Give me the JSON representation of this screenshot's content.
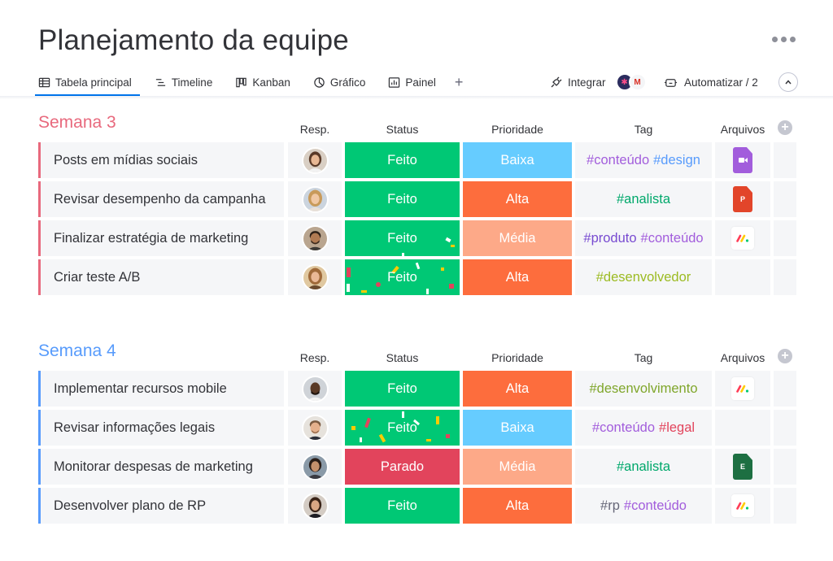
{
  "board": {
    "title": "Planejamento da equipe",
    "more_icon": "more-dots-icon"
  },
  "tabs": [
    {
      "label": "Tabela principal",
      "icon": "table-icon",
      "active": true
    },
    {
      "label": "Timeline",
      "icon": "timeline-icon"
    },
    {
      "label": "Kanban",
      "icon": "kanban-icon"
    },
    {
      "label": "Gráfico",
      "icon": "chart-pie-icon"
    },
    {
      "label": "Painel",
      "icon": "dashboard-icon"
    }
  ],
  "add_view_icon": "plus-icon",
  "toolbar": {
    "integrate_label": "Integrar",
    "automate_label": "Automatizar / 2"
  },
  "columns": {
    "person": "Resp.",
    "status": "Status",
    "priority": "Prioridade",
    "tag": "Tag",
    "files": "Arquivos"
  },
  "colors": {
    "feito": "#00c875",
    "parado": "#e2445c",
    "baixa": "#579bfc",
    "alta": "#fd6d3d",
    "media": "#fda988",
    "group3": "#e8697d",
    "group4": "#579bfc"
  },
  "groups": [
    {
      "title": "Semana 3",
      "rows": [
        {
          "name": "Posts em mídias sociais",
          "status": "Feito",
          "priority": "Baixa",
          "tags": [
            "#conteúdo",
            "#design"
          ],
          "file": "video-file-icon"
        },
        {
          "name": "Revisar desempenho da campanha",
          "status": "Feito",
          "priority": "Alta",
          "tags": [
            "#analista"
          ],
          "file": "pdf-file-icon"
        },
        {
          "name": "Finalizar estratégia de marketing",
          "status": "Feito",
          "priority": "Média",
          "tags": [
            "#produto",
            "#conteúdo"
          ],
          "file": "monday-file-icon"
        },
        {
          "name": "Criar teste A/B",
          "status": "Feito",
          "priority": "Alta",
          "tags": [
            "#desenvolvedor"
          ],
          "file": ""
        }
      ]
    },
    {
      "title": "Semana 4",
      "rows": [
        {
          "name": "Implementar recursos mobile",
          "status": "Feito",
          "priority": "Alta",
          "tags": [
            "#desenvolvimento"
          ],
          "file": "monday-file-icon"
        },
        {
          "name": "Revisar informações legais",
          "status": "Feito",
          "priority": "Baixa",
          "tags": [
            "#conteúdo",
            "#legal"
          ],
          "file": ""
        },
        {
          "name": "Monitorar despesas de marketing",
          "status": "Parado",
          "priority": "Média",
          "tags": [
            "#analista"
          ],
          "file": "excel-file-icon"
        },
        {
          "name": "Desenvolver plano de RP",
          "status": "Feito",
          "priority": "Alta",
          "tags": [
            "#rp",
            "#conteúdo"
          ],
          "file": "monday-file-icon"
        }
      ]
    }
  ]
}
